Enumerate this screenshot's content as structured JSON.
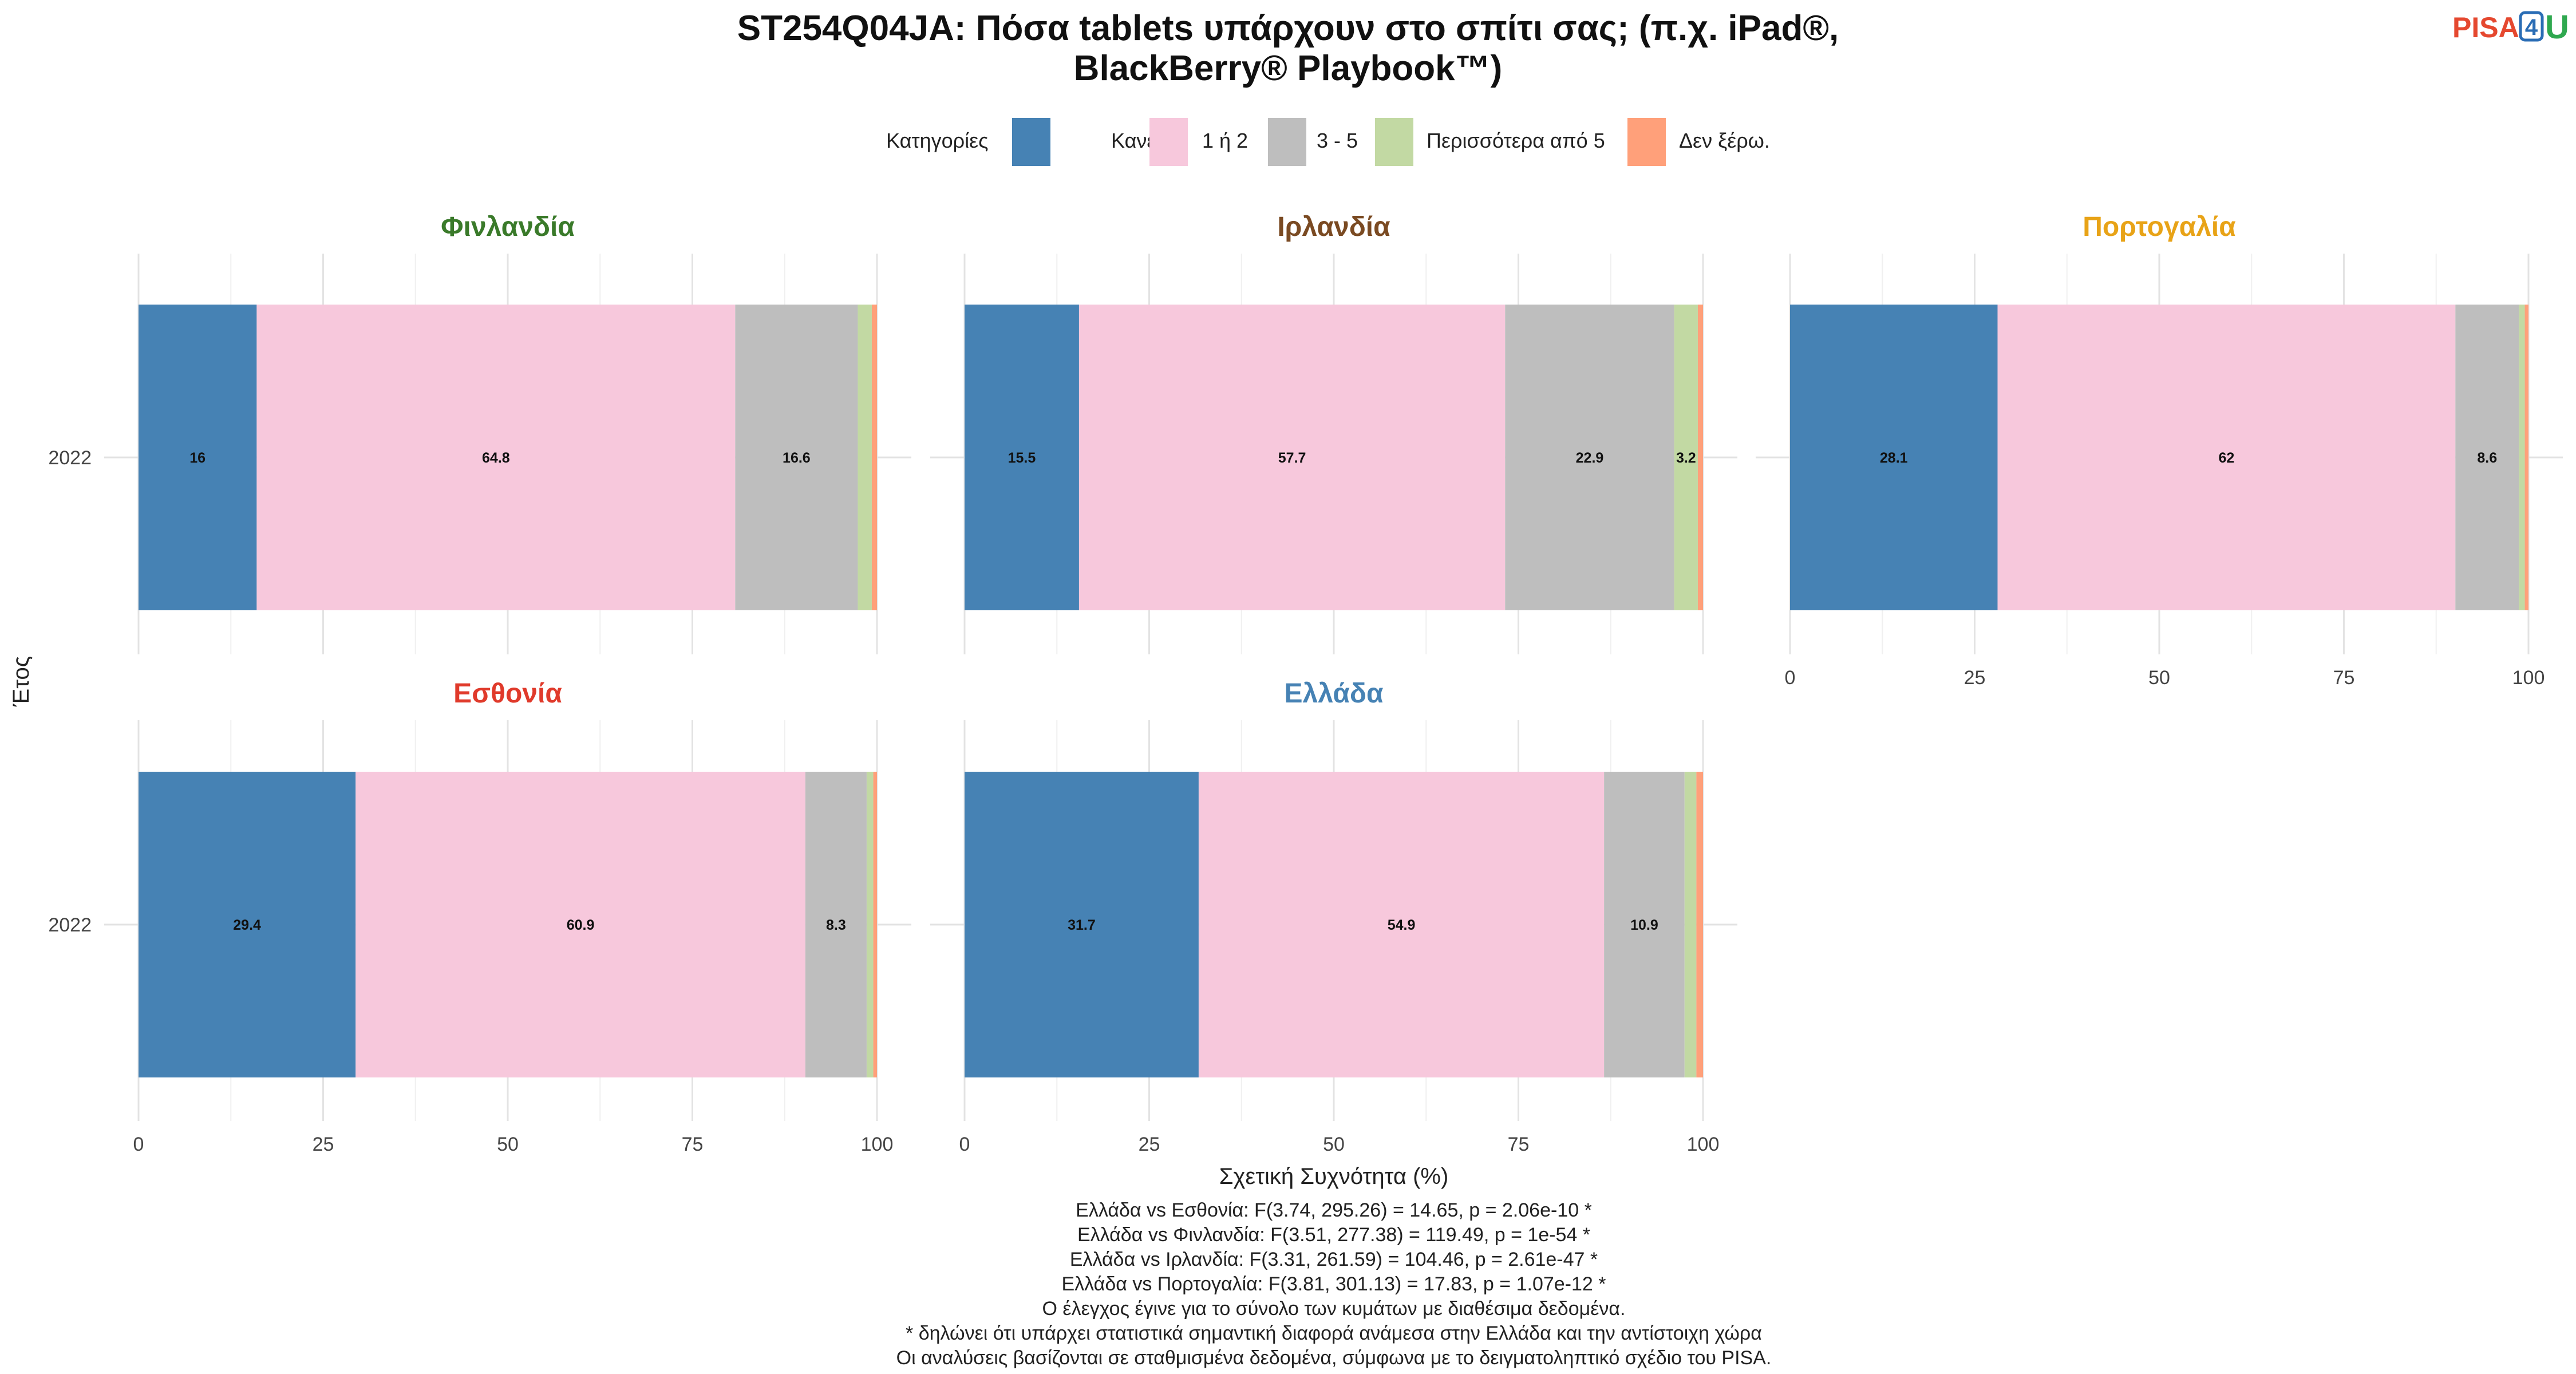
{
  "title_lines": [
    "ST254Q04JA: Πόσα tablets υπάρχουν στο σπίτι σας; (π.χ. iPad®,",
    "BlackBerry® Playbook™)"
  ],
  "logo": {
    "text": "PISA",
    "digit": "4",
    "suffix": "U"
  },
  "legend": {
    "title": "Κατηγορίες",
    "items": [
      {
        "label": "Κανένα",
        "color": "#4682B4"
      },
      {
        "label": "1 ή 2",
        "color": "#F7C8DC"
      },
      {
        "label": "3 - 5",
        "color": "#BEBEBE"
      },
      {
        "label": "Περισσότερα από 5",
        "color": "#C2D9A3"
      },
      {
        "label": "Δεν ξέρω.",
        "color": "#FFA07A"
      }
    ]
  },
  "y_axis_title": "Έτος",
  "x_axis_title": "Σχετική Συχνότητα (%)",
  "chart_data": {
    "type": "bar",
    "orientation": "horizontal",
    "stacked": true,
    "xlim": [
      0,
      100
    ],
    "x_ticks": [
      "0",
      "25",
      "50",
      "75",
      "100"
    ],
    "categories": [
      "2022"
    ],
    "series_names": [
      "Κανένα",
      "1 ή 2",
      "3 - 5",
      "Περισσότερα από 5",
      "Δεν ξέρω."
    ],
    "panels": [
      {
        "country": "Φινλανδία",
        "title_color": "#3A7A2A",
        "year": "2022",
        "values": [
          16.0,
          64.8,
          16.6,
          1.9,
          0.7
        ],
        "labels": [
          "16",
          "64.8",
          "16.6",
          "",
          ""
        ]
      },
      {
        "country": "Ιρλανδία",
        "title_color": "#7A4A22",
        "year": "2022",
        "values": [
          15.5,
          57.7,
          22.9,
          3.2,
          0.7
        ],
        "labels": [
          "15.5",
          "57.7",
          "22.9",
          "3.2",
          ""
        ]
      },
      {
        "country": "Πορτογαλία",
        "title_color": "#E8A317",
        "year": "2022",
        "values": [
          28.1,
          62.0,
          8.6,
          0.8,
          0.5
        ],
        "labels": [
          "28.1",
          "62",
          "8.6",
          "",
          ""
        ]
      },
      {
        "country": "Εσθονία",
        "title_color": "#E03A2B",
        "year": "2022",
        "values": [
          29.4,
          60.9,
          8.3,
          0.9,
          0.5
        ],
        "labels": [
          "29.4",
          "60.9",
          "8.3",
          "",
          ""
        ]
      },
      {
        "country": "Ελλάδα",
        "title_color": "#4682B4",
        "year": "2022",
        "values": [
          31.7,
          54.9,
          10.9,
          1.6,
          0.9
        ],
        "labels": [
          "31.7",
          "54.9",
          "10.9",
          "",
          ""
        ]
      }
    ]
  },
  "notes": [
    "Ελλάδα vs Εσθονία: F(3.74, 295.26) = 14.65, p = 2.06e-10 *",
    "Ελλάδα vs Φινλανδία: F(3.51, 277.38) = 119.49, p = 1e-54 *",
    "Ελλάδα vs Ιρλανδία: F(3.31, 261.59) = 104.46, p = 2.61e-47 *",
    "Ελλάδα vs Πορτογαλία: F(3.81, 301.13) = 17.83, p = 1.07e-12 *",
    "Ο έλεγχος έγινε για το σύνολο των κυμάτων με διαθέσιμα δεδομένα.",
    "* δηλώνει ότι υπάρχει στατιστικά σημαντική διαφορά ανάμεσα στην Ελλάδα και την αντίστοιχη χώρα",
    "Οι αναλύσεις βασίζονται σε σταθμισμένα δεδομένα, σύμφωνα με το δειγματοληπτικό σχέδιο του PISA."
  ]
}
